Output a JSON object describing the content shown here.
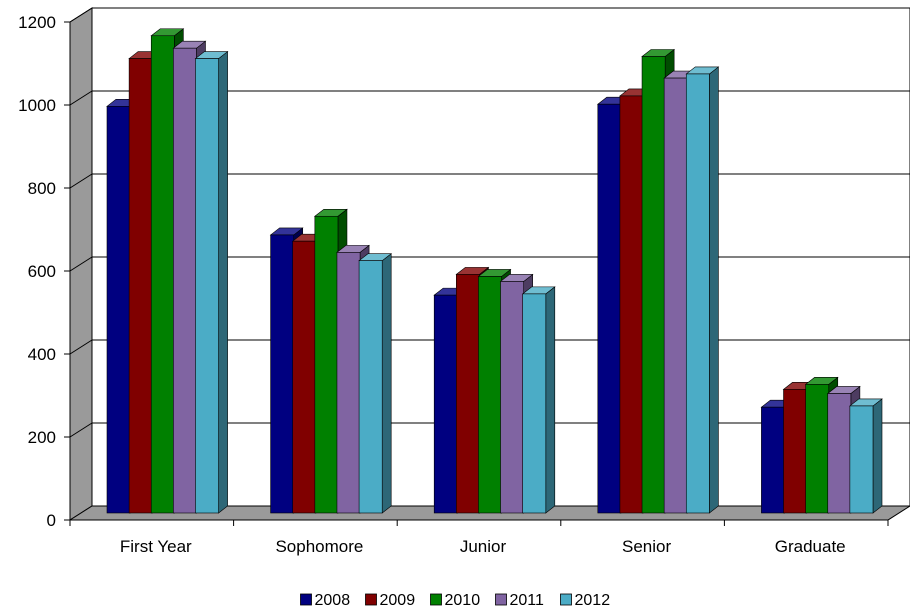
{
  "chart_data": {
    "type": "bar",
    "categories": [
      "First Year",
      "Sophomore",
      "Junior",
      "Senior",
      "Graduate"
    ],
    "series": [
      {
        "name": "2008",
        "color": "#000080",
        "values": [
          980,
          670,
          525,
          985,
          255
        ]
      },
      {
        "name": "2009",
        "color": "#800000",
        "values": [
          1095,
          655,
          575,
          1005,
          298
        ]
      },
      {
        "name": "2010",
        "color": "#008000",
        "values": [
          1150,
          715,
          570,
          1100,
          310
        ]
      },
      {
        "name": "2011",
        "color": "#8064A2",
        "values": [
          1120,
          628,
          558,
          1048,
          288
        ]
      },
      {
        "name": "2012",
        "color": "#4BACC6",
        "values": [
          1095,
          608,
          528,
          1058,
          258
        ]
      }
    ],
    "y_ticks": [
      0,
      200,
      400,
      600,
      800,
      1000,
      1200
    ],
    "ylim": [
      0,
      1200
    ],
    "grid": true,
    "legend_position": "bottom",
    "title": "",
    "xlabel": "",
    "ylabel": ""
  }
}
